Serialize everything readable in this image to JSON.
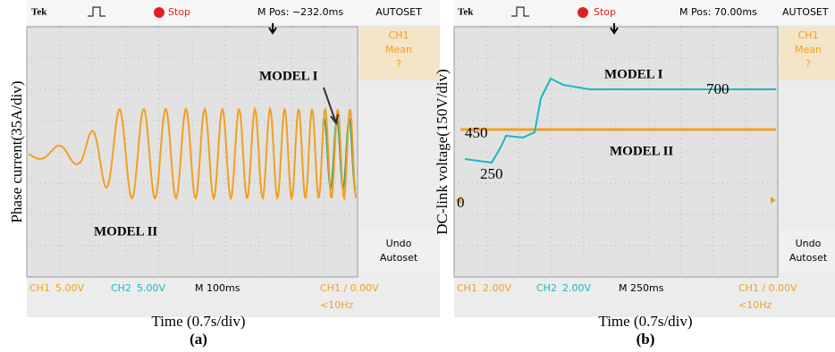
{
  "panels": [
    {
      "header": {
        "brand": "Tek",
        "status": "Stop",
        "position": "M Pos: −232.0ms"
      },
      "menu": {
        "top": "AUTOSET",
        "channel": "CH1",
        "item": "Mean",
        "value": "?",
        "undo": "Undo",
        "autoset": "Autoset"
      },
      "footer": {
        "ch1": "CH1",
        "ch1_scale": "5.00V",
        "ch2": "CH2",
        "ch2_scale": "5.00V",
        "time": "M 100ms",
        "trigger": "CH1 ∕ 0.00V",
        "freq": "<10Hz"
      },
      "annotations": [
        "MODEL I",
        "MODEL II"
      ],
      "y_label": "Phase current(35A/div)",
      "x_label": "Time (0.7s/div)",
      "caption": "(a)"
    },
    {
      "header": {
        "brand": "Tek",
        "status": "Stop",
        "position": "M Pos: 70.00ms"
      },
      "menu": {
        "top": "AUTOSET",
        "channel": "CH1",
        "item": "Mean",
        "value": "?",
        "undo": "Undo",
        "autoset": "Autoset"
      },
      "footer": {
        "ch1": "CH1",
        "ch1_scale": "2.00V",
        "ch2": "CH2",
        "ch2_scale": "2.00V",
        "time": "M 250ms",
        "trigger": "CH1 ∕ 0.00V",
        "freq": "<10Hz"
      },
      "annotations": [
        "MODEL I",
        "700",
        "450",
        "MODEL II",
        "250",
        "0"
      ],
      "y_label": "DC-link voltage(150V/div)",
      "x_label": "Time (0.7s/div)",
      "caption": "(b)"
    }
  ]
}
